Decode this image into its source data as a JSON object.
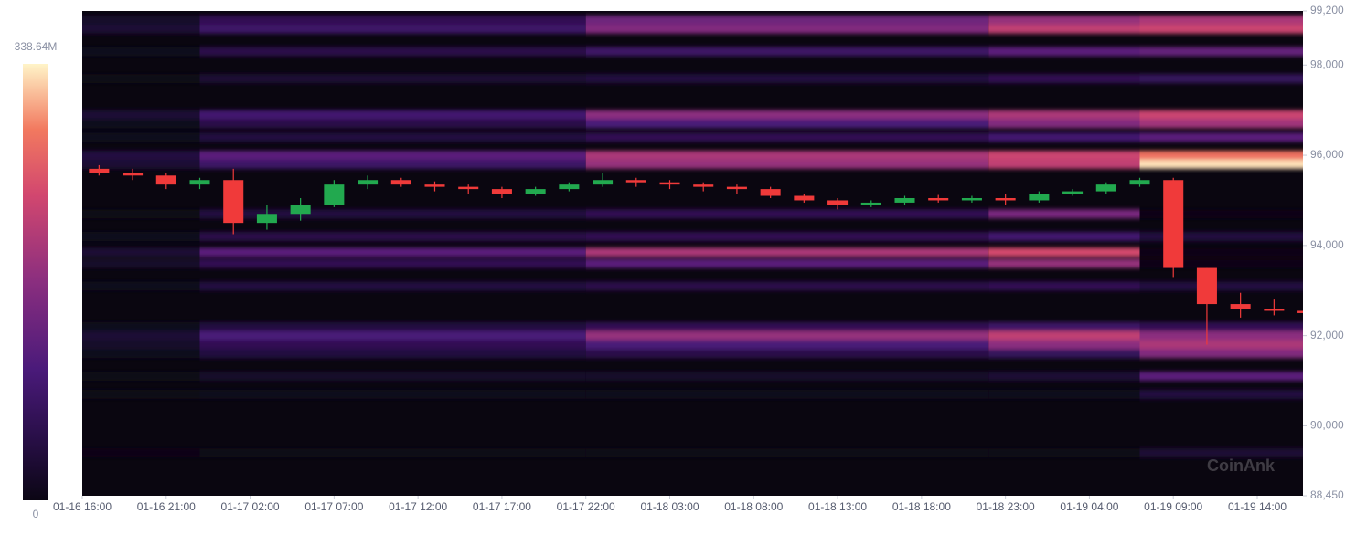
{
  "chart_data": {
    "type": "heatmap-candlestick",
    "watermark": "CoinAnk",
    "categories": [
      "01-16 16:00",
      "01-16 21:00",
      "01-17 02:00",
      "01-17 07:00",
      "01-17 12:00",
      "01-17 17:00",
      "01-17 22:00",
      "01-18 03:00",
      "01-18 08:00",
      "01-18 13:00",
      "01-18 18:00",
      "01-18 23:00",
      "01-19 04:00",
      "01-19 09:00",
      "01-19 14:00"
    ],
    "ylim": [
      88450,
      99200
    ],
    "yticks": [
      {
        "value": 88450,
        "label": "88,450"
      },
      {
        "value": 90000,
        "label": "90,000"
      },
      {
        "value": 92000,
        "label": "92,000"
      },
      {
        "value": 94000,
        "label": "94,000"
      },
      {
        "value": 96000,
        "label": "96,000"
      },
      {
        "value": 98000,
        "label": "98,000"
      },
      {
        "value": 99200,
        "label": "99,200"
      }
    ],
    "colorbar": {
      "lim": [
        0,
        {
          "value": 338.64,
          "label": "338.64M"
        }
      ]
    },
    "heatmap": {
      "x": [
        "01-16 16:00",
        "01-16 23:00",
        "01-17 22:00",
        "01-18 22:00",
        "01-19 07:00"
      ],
      "levels": [
        99000,
        98800,
        98300,
        97700,
        96900,
        96700,
        96400,
        96000,
        95800,
        94700,
        94200,
        93850,
        93600,
        93100,
        92200,
        92000,
        91800,
        91600,
        91100,
        90700,
        89400
      ],
      "values": [
        [
          20,
          60,
          140,
          180,
          200
        ],
        [
          30,
          80,
          160,
          220,
          230
        ],
        [
          10,
          50,
          80,
          120,
          130
        ],
        [
          5,
          30,
          40,
          60,
          70
        ],
        [
          30,
          90,
          170,
          200,
          230
        ],
        [
          10,
          50,
          100,
          160,
          190
        ],
        [
          10,
          40,
          60,
          90,
          120
        ],
        [
          40,
          120,
          200,
          230,
          280
        ],
        [
          30,
          80,
          180,
          220,
          330
        ],
        [
          5,
          40,
          60,
          150,
          0
        ],
        [
          10,
          50,
          60,
          90,
          40
        ],
        [
          30,
          120,
          200,
          240,
          0
        ],
        [
          20,
          60,
          120,
          180,
          0
        ],
        [
          10,
          40,
          50,
          60,
          40
        ],
        [
          10,
          40,
          60,
          80,
          60
        ],
        [
          30,
          100,
          180,
          220,
          170
        ],
        [
          20,
          60,
          100,
          170,
          200
        ],
        [
          10,
          40,
          50,
          70,
          160
        ],
        [
          5,
          20,
          20,
          30,
          120
        ],
        [
          5,
          10,
          10,
          10,
          40
        ],
        [
          0,
          5,
          5,
          5,
          30
        ]
      ]
    },
    "candles": {
      "up_color": "#22a94f",
      "down_color": "#f03a3a",
      "x": [
        "01-16 16:00",
        "01-16 18:00",
        "01-16 20:00",
        "01-16 22:00",
        "01-17 00:00",
        "01-17 02:00",
        "01-17 04:00",
        "01-17 06:00",
        "01-17 08:00",
        "01-17 10:00",
        "01-17 12:00",
        "01-17 14:00",
        "01-17 16:00",
        "01-17 18:00",
        "01-17 20:00",
        "01-17 22:00",
        "01-18 00:00",
        "01-18 02:00",
        "01-18 04:00",
        "01-18 06:00",
        "01-18 08:00",
        "01-18 10:00",
        "01-18 12:00",
        "01-18 14:00",
        "01-18 16:00",
        "01-18 18:00",
        "01-18 20:00",
        "01-18 22:00",
        "01-19 00:00",
        "01-19 02:00",
        "01-19 04:00",
        "01-19 06:00",
        "01-19 08:00",
        "01-19 10:00",
        "01-19 12:00",
        "01-19 14:00",
        "01-19 16:00"
      ],
      "open": [
        95700,
        95600,
        95550,
        95350,
        95450,
        94500,
        94700,
        94900,
        95350,
        95450,
        95350,
        95300,
        95250,
        95150,
        95250,
        95350,
        95450,
        95400,
        95350,
        95300,
        95250,
        95100,
        95000,
        94900,
        94950,
        95050,
        95000,
        95050,
        95000,
        95150,
        95200,
        95350,
        95450,
        93500,
        92700,
        92600,
        92550
      ],
      "high": [
        95780,
        95700,
        95600,
        95500,
        95700,
        94900,
        95050,
        95450,
        95550,
        95500,
        95420,
        95350,
        95300,
        95300,
        95400,
        95600,
        95500,
        95450,
        95400,
        95350,
        95300,
        95150,
        95050,
        95000,
        95100,
        95120,
        95100,
        95150,
        95200,
        95250,
        95400,
        95500,
        95500,
        93500,
        92950,
        92800,
        92700
      ],
      "low": [
        95550,
        95450,
        95250,
        95250,
        94250,
        94350,
        94550,
        94850,
        95250,
        95300,
        95200,
        95150,
        95050,
        95100,
        95200,
        95300,
        95300,
        95250,
        95200,
        95150,
        95050,
        94950,
        94800,
        94850,
        94900,
        94950,
        94950,
        94900,
        94950,
        95100,
        95150,
        95300,
        93300,
        91800,
        92400,
        92450,
        92400
      ],
      "close": [
        95600,
        95550,
        95350,
        95450,
        94500,
        94700,
        94900,
        95350,
        95450,
        95350,
        95300,
        95250,
        95150,
        95250,
        95350,
        95450,
        95400,
        95350,
        95300,
        95250,
        95100,
        95000,
        94900,
        94950,
        95050,
        95000,
        95050,
        95000,
        95150,
        95200,
        95350,
        95450,
        93500,
        92700,
        92600,
        92550,
        92500
      ]
    }
  }
}
